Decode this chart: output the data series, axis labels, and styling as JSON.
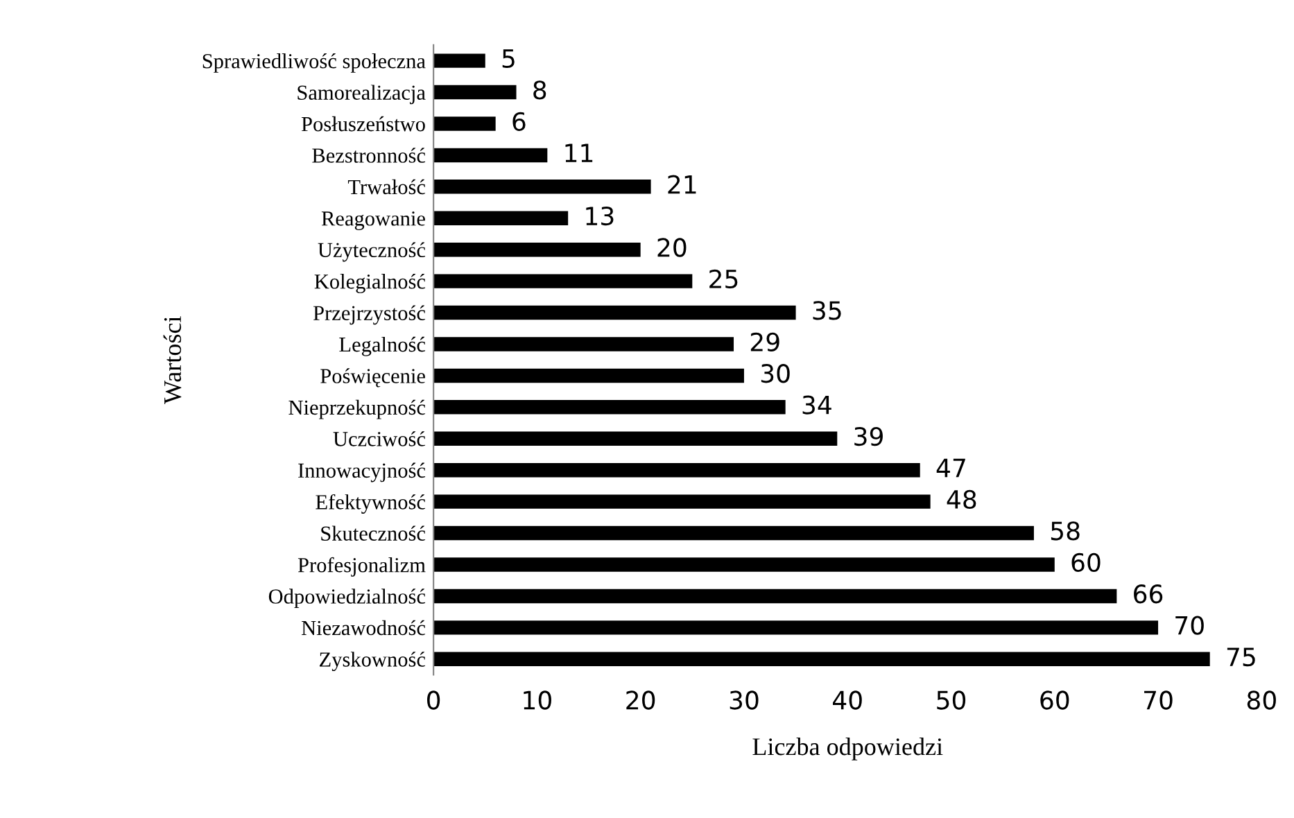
{
  "chart_data": {
    "type": "bar",
    "orientation": "horizontal",
    "xlabel": "Liczba odpowiedzi",
    "ylabel": "Wartości",
    "categories": [
      "Sprawiedliwość społeczna",
      "Samorealizacja",
      "Posłuszeństwo",
      "Bezstronność",
      "Trwałość",
      "Reagowanie",
      "Użyteczność",
      "Kolegialność",
      "Przejrzystość",
      "Legalność",
      "Poświęcenie",
      "Nieprzekupność",
      "Uczciwość",
      "Innowacyjność",
      "Efektywność",
      "Skuteczność",
      "Profesjonalizm",
      "Odpowiedzialność",
      "Niezawodność",
      "Zyskowność"
    ],
    "values": [
      5,
      8,
      6,
      11,
      21,
      13,
      20,
      25,
      35,
      29,
      30,
      34,
      39,
      47,
      48,
      58,
      60,
      66,
      70,
      75
    ],
    "color": "#000000",
    "xlim": [
      0,
      80
    ],
    "xticks": [
      0,
      10,
      20,
      30,
      40,
      50,
      60,
      70,
      80
    ],
    "data_labels": true,
    "grid": false,
    "legend": false
  }
}
